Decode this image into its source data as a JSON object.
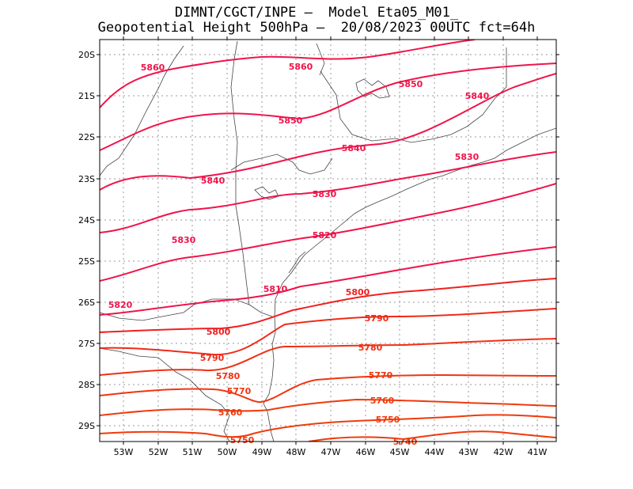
{
  "header": {
    "line1": "DIMNT/CGCT/INPE –  Model Eta05_M01_",
    "line2": "Geopotential Height 500hPa –  20/08/2023 00UTC fct=64h"
  },
  "axes": {
    "lat_labels": [
      "20S",
      "21S",
      "22S",
      "23S",
      "24S",
      "25S",
      "26S",
      "27S",
      "28S",
      "29S"
    ],
    "lon_labels": [
      "53W",
      "52W",
      "51W",
      "50W",
      "49W",
      "48W",
      "47W",
      "46W",
      "45W",
      "44W",
      "43W",
      "42W",
      "41W"
    ]
  },
  "colors": {
    "frame": "#000000",
    "grid": "#9a9a9a",
    "coast": "#444444",
    "contour_high": "#f0144a",
    "contour_low": "#f03a0a"
  },
  "contours": [
    {
      "value": 5860,
      "label": "5860",
      "color": "#f0144a"
    },
    {
      "value": 5850,
      "label": "5850",
      "color": "#f0144a"
    },
    {
      "value": 5840,
      "label": "5840",
      "color": "#f0144a"
    },
    {
      "value": 5830,
      "label": "5830",
      "color": "#f0144a"
    },
    {
      "value": 5820,
      "label": "5820",
      "color": "#f0144a"
    },
    {
      "value": 5810,
      "label": "5810",
      "color": "#f0144a"
    },
    {
      "value": 5800,
      "label": "5800",
      "color": "#f02020"
    },
    {
      "value": 5790,
      "label": "5790",
      "color": "#f02a18"
    },
    {
      "value": 5780,
      "label": "5780",
      "color": "#f03014"
    },
    {
      "value": 5770,
      "label": "5770",
      "color": "#f03510"
    },
    {
      "value": 5760,
      "label": "5760",
      "color": "#f03a0c"
    },
    {
      "value": 5750,
      "label": "5750",
      "color": "#f03a0a"
    },
    {
      "value": 5740,
      "label": "5740",
      "color": "#f03a0a"
    }
  ]
}
